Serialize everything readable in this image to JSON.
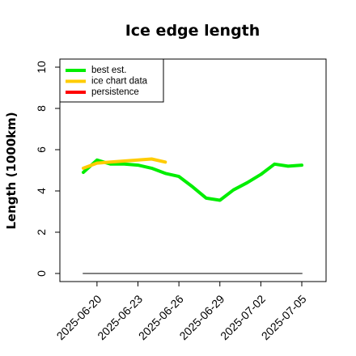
{
  "chart_data": {
    "type": "line",
    "title": "Ice edge length",
    "xlabel": "",
    "ylabel": "Length (1000km)",
    "x_start": "2025-06-19",
    "x_end": "2025-07-05",
    "ylim": [
      0,
      10
    ],
    "y_ticks": [
      0,
      2,
      4,
      6,
      8,
      10
    ],
    "x_ticks": [
      "2025-06-20",
      "2025-06-23",
      "2025-06-26",
      "2025-06-29",
      "2025-07-02",
      "2025-07-05"
    ],
    "grid": false,
    "legend_position": "top-left",
    "series": [
      {
        "name": "best est.",
        "color": "#00ee00",
        "points": [
          [
            "2025-06-19",
            4.9
          ],
          [
            "2025-06-20",
            5.5
          ],
          [
            "2025-06-21",
            5.3
          ],
          [
            "2025-06-22",
            5.3
          ],
          [
            "2025-06-23",
            5.25
          ],
          [
            "2025-06-24",
            5.1
          ],
          [
            "2025-06-25",
            4.85
          ],
          [
            "2025-06-26",
            4.7
          ],
          [
            "2025-06-27",
            4.2
          ],
          [
            "2025-06-28",
            3.65
          ],
          [
            "2025-06-29",
            3.55
          ],
          [
            "2025-06-30",
            4.05
          ],
          [
            "2025-07-01",
            4.4
          ],
          [
            "2025-07-02",
            4.8
          ],
          [
            "2025-07-03",
            5.3
          ],
          [
            "2025-07-04",
            5.2
          ],
          [
            "2025-07-05",
            5.25
          ]
        ]
      },
      {
        "name": "ice chart data",
        "color": "#ffcc00",
        "points": [
          [
            "2025-06-19",
            5.1
          ],
          [
            "2025-06-20",
            5.35
          ],
          [
            "2025-06-21",
            5.4
          ],
          [
            "2025-06-22",
            5.45
          ],
          [
            "2025-06-23",
            5.5
          ],
          [
            "2025-06-24",
            5.55
          ],
          [
            "2025-06-25",
            5.4
          ]
        ]
      },
      {
        "name": "persistence",
        "color": "#ff0000",
        "points": []
      },
      {
        "name": "",
        "color": "#808080",
        "points": [
          [
            "2025-06-19",
            0
          ],
          [
            "2025-07-05",
            0
          ]
        ]
      }
    ]
  }
}
